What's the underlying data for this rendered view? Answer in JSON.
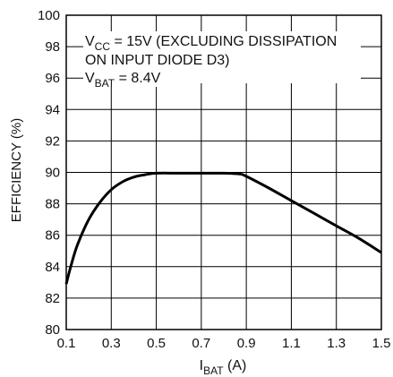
{
  "chart_data": {
    "type": "line",
    "title": "",
    "xlabel": "I",
    "xlabel_sub": "BAT",
    "xlabel_tail": " (A)",
    "ylabel": "EFFICIENCY (%)",
    "xlim": [
      0.1,
      1.5
    ],
    "ylim": [
      80,
      100
    ],
    "x_ticks": [
      0.1,
      0.3,
      0.5,
      0.7,
      0.9,
      1.1,
      1.3,
      1.5
    ],
    "y_ticks": [
      80,
      82,
      84,
      86,
      88,
      90,
      92,
      94,
      96,
      98,
      100
    ],
    "x_tick_labels": [
      "0.1",
      "0.3",
      "0.5",
      "0.7",
      "0.9",
      "1.1",
      "1.3",
      "1.5"
    ],
    "y_tick_labels": [
      "80",
      "82",
      "84",
      "86",
      "88",
      "90",
      "92",
      "94",
      "96",
      "98",
      "100"
    ],
    "grid": true,
    "series": [
      {
        "x": [
          0.1,
          0.12,
          0.15,
          0.2,
          0.25,
          0.3,
          0.35,
          0.4,
          0.45,
          0.5,
          0.6,
          0.7,
          0.8,
          0.87,
          0.9,
          1.0,
          1.1,
          1.2,
          1.3,
          1.4,
          1.5
        ],
        "y": [
          82.9,
          84.0,
          85.4,
          87.0,
          88.1,
          88.9,
          89.4,
          89.7,
          89.85,
          89.95,
          89.95,
          89.95,
          89.95,
          89.9,
          89.75,
          89.0,
          88.2,
          87.4,
          86.6,
          85.8,
          84.9
        ]
      }
    ],
    "annotation": {
      "line1_main": "V",
      "line1_sub": "CC",
      "line1_tail": " = 15V (EXCLUDING DISSIPATION",
      "line2": "ON INPUT DIODE D3)",
      "line3_main": "V",
      "line3_sub": "BAT",
      "line3_tail": " = 8.4V"
    },
    "colors": {
      "line": "#000000",
      "grid": "#000000",
      "text": "#111111"
    }
  }
}
